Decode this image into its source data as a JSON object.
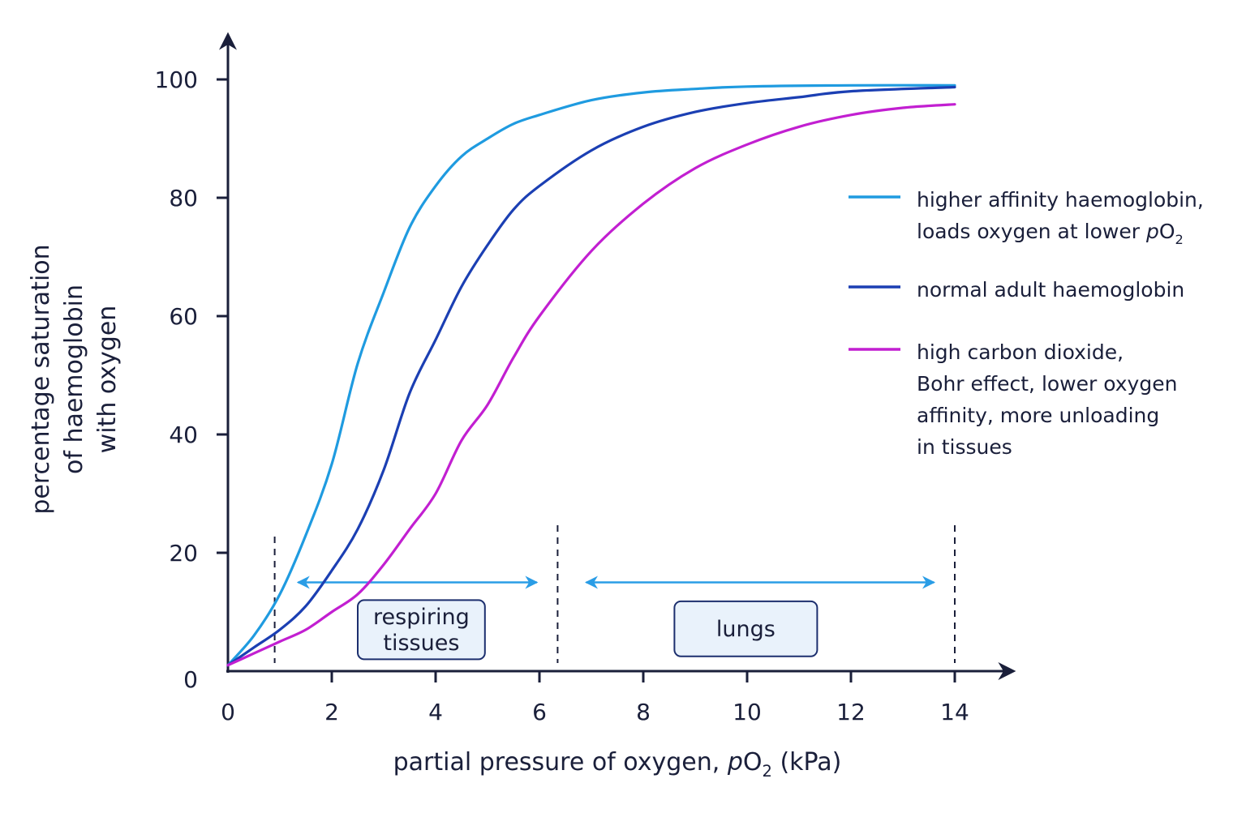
{
  "chart_data": {
    "type": "line",
    "xlabel_parts": {
      "pre": "partial pressure of oxygen, ",
      "italic": "p",
      "main": "O",
      "sub": "2",
      "post": " (kPa)"
    },
    "ylabel_lines": [
      "percentage saturation",
      "of haemoglobin",
      "with oxygen"
    ],
    "xlim": [
      0,
      15
    ],
    "ylim": [
      0,
      100
    ],
    "xticks": [
      0,
      2,
      4,
      6,
      8,
      10,
      12,
      14
    ],
    "yticks": [
      0,
      20,
      40,
      60,
      80,
      100
    ],
    "series": [
      {
        "key": "higher",
        "color": "#1f9be0",
        "legend_lines": [
          "higher affinity haemoglobin,",
          "loads oxygen at lower"
        ],
        "legend_suffix": {
          "italic": "p",
          "main": "O",
          "sub": "2"
        },
        "points": [
          [
            0,
            1
          ],
          [
            0.5,
            6
          ],
          [
            1,
            13
          ],
          [
            1.5,
            23
          ],
          [
            2,
            35
          ],
          [
            2.5,
            52
          ],
          [
            3,
            64
          ],
          [
            3.5,
            75
          ],
          [
            4,
            82
          ],
          [
            4.5,
            87
          ],
          [
            5,
            90
          ],
          [
            5.5,
            92.5
          ],
          [
            6,
            94
          ],
          [
            7,
            96.5
          ],
          [
            8,
            97.8
          ],
          [
            9,
            98.4
          ],
          [
            10,
            98.8
          ],
          [
            12,
            99
          ],
          [
            14,
            99
          ]
        ]
      },
      {
        "key": "normal",
        "color": "#1b3fb3",
        "legend_lines": [
          "normal adult haemoglobin"
        ],
        "points": [
          [
            0,
            1
          ],
          [
            0.5,
            4
          ],
          [
            1,
            7
          ],
          [
            1.5,
            11
          ],
          [
            2,
            17
          ],
          [
            2.5,
            24
          ],
          [
            3,
            34
          ],
          [
            3.5,
            47
          ],
          [
            4,
            56
          ],
          [
            4.5,
            65
          ],
          [
            5,
            72
          ],
          [
            5.5,
            78
          ],
          [
            6,
            82
          ],
          [
            7,
            88
          ],
          [
            8,
            92
          ],
          [
            9,
            94.5
          ],
          [
            10,
            96
          ],
          [
            11,
            97
          ],
          [
            12,
            98
          ],
          [
            14,
            98.7
          ]
        ]
      },
      {
        "key": "bohr",
        "color": "#c21fd1",
        "legend_lines": [
          "high carbon dioxide,",
          "Bohr effect, lower oxygen",
          "affinity, more unloading",
          "in tissues"
        ],
        "points": [
          [
            0,
            1
          ],
          [
            0.5,
            3
          ],
          [
            1,
            5
          ],
          [
            1.5,
            7
          ],
          [
            2,
            10
          ],
          [
            2.5,
            13
          ],
          [
            3,
            18
          ],
          [
            3.5,
            24
          ],
          [
            4,
            30
          ],
          [
            4.5,
            39
          ],
          [
            5,
            45
          ],
          [
            5.5,
            53
          ],
          [
            6,
            60
          ],
          [
            7,
            71
          ],
          [
            8,
            79
          ],
          [
            9,
            85
          ],
          [
            10,
            89
          ],
          [
            11,
            92
          ],
          [
            12,
            94
          ],
          [
            13,
            95.2
          ],
          [
            14,
            95.8
          ]
        ]
      }
    ],
    "dashed_lines_x": [
      0.9,
      6.35,
      14
    ],
    "regions": [
      {
        "key": "tissues",
        "label_lines": [
          "respiring",
          "tissues"
        ],
        "arrow_x": [
          1.35,
          5.95
        ],
        "arrow_y": 15,
        "box_x": [
          2.5,
          4.95
        ],
        "box_y": [
          2,
          12
        ],
        "color": "#2a9de6"
      },
      {
        "key": "lungs",
        "label_lines": [
          "lungs"
        ],
        "arrow_x": [
          6.9,
          13.6
        ],
        "arrow_y": 15,
        "box_x": [
          8.6,
          11.35
        ],
        "box_y": [
          2.5,
          11.8
        ],
        "color": "#2a9de6"
      }
    ]
  }
}
